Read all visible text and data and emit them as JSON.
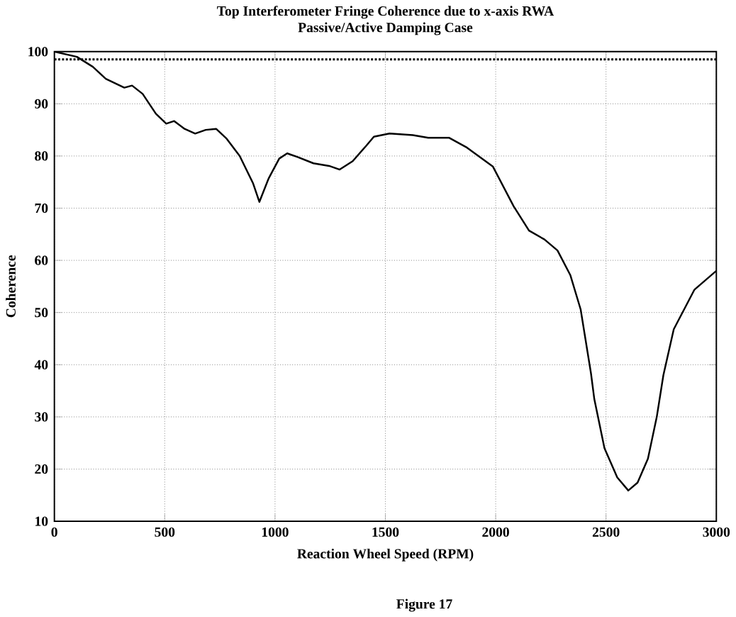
{
  "chart_data": {
    "type": "line",
    "title": "Top Interferometer Fringe Coherence due to x-axis RWA",
    "subtitle": "Passive/Active Damping Case",
    "xlabel": "Reaction Wheel Speed (RPM)",
    "ylabel": "Coherence",
    "annotations": [
      "Figure 17"
    ],
    "xlim": [
      0,
      3000
    ],
    "ylim": [
      10,
      100
    ],
    "xticks": [
      0,
      500,
      1000,
      1500,
      2000,
      2500,
      3000
    ],
    "yticks": [
      10,
      20,
      30,
      40,
      50,
      60,
      70,
      80,
      90,
      100
    ],
    "grid": true,
    "series": [
      {
        "color": "#000000",
        "line_style": "solid",
        "x": [
          0,
          102,
          174,
          233,
          317,
          352,
          400,
          460,
          507,
          543,
          590,
          638,
          686,
          733,
          781,
          840,
          900,
          929,
          971,
          1019,
          1055,
          1102,
          1174,
          1245,
          1293,
          1352,
          1412,
          1448,
          1519,
          1624,
          1694,
          1788,
          1870,
          1987,
          2081,
          2151,
          2221,
          2280,
          2338,
          2385,
          2432,
          2447,
          2493,
          2551,
          2601,
          2643,
          2690,
          2730,
          2760,
          2807,
          2901,
          3000
        ],
        "values": [
          100,
          99,
          97.1,
          94.8,
          93.1,
          93.5,
          91.9,
          88.1,
          86.2,
          86.7,
          85.2,
          84.3,
          85,
          85.2,
          83.3,
          80,
          74.8,
          71.2,
          75.7,
          79.5,
          80.5,
          79.8,
          78.6,
          78.1,
          77.4,
          79,
          81.9,
          83.7,
          84.3,
          84,
          83.5,
          83.5,
          81.6,
          78,
          70.4,
          65.7,
          64,
          61.9,
          57.2,
          50.6,
          38.3,
          33.4,
          24,
          18.4,
          15.9,
          17.4,
          22,
          30,
          38,
          46.8,
          54.4,
          58
        ]
      },
      {
        "color": "#000000",
        "line_style": "dotted",
        "x": [
          0,
          3000
        ],
        "values": [
          98.5,
          98.5
        ]
      }
    ]
  }
}
